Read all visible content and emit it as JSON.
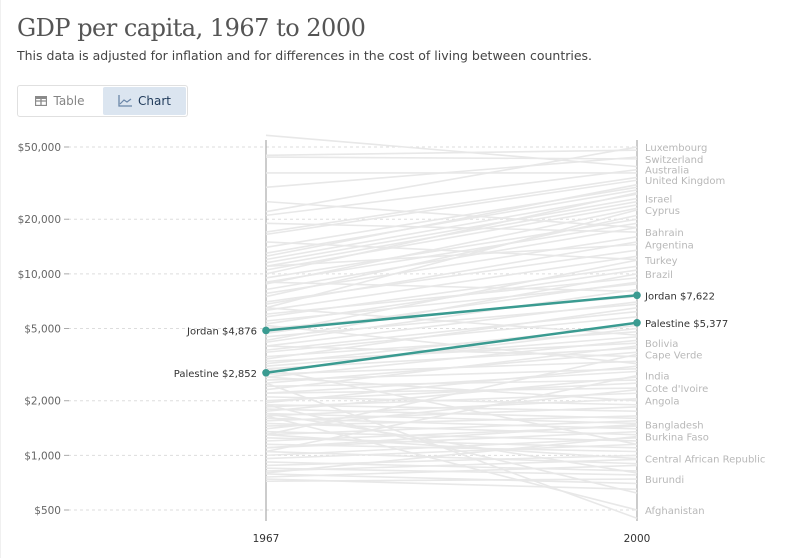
{
  "header": {
    "title": "GDP per capita, 1967 to 2000",
    "subtitle": "This data is adjusted for inflation and for differences in the cost of living between countries."
  },
  "tabs": [
    {
      "label": "Table",
      "icon": "table-icon",
      "active": false
    },
    {
      "label": "Chart",
      "icon": "line-chart-icon",
      "active": true
    }
  ],
  "colors": {
    "highlight": "#3a9b91",
    "background_line": "#e8e8e8",
    "grid": "#dddddd",
    "axis": "#999999"
  },
  "chart_data": {
    "type": "line",
    "subtype": "slope",
    "title": "GDP per capita, 1967 to 2000",
    "x": [
      "1967",
      "2000"
    ],
    "y_scale": "log",
    "ylim": [
      450,
      60000
    ],
    "y_ticks": [
      {
        "value": 50000,
        "label": "$50,000"
      },
      {
        "value": 20000,
        "label": "$20,000"
      },
      {
        "value": 10000,
        "label": "$10,000"
      },
      {
        "value": 5000,
        "label": "$5,000"
      },
      {
        "value": 2000,
        "label": "$2,000"
      },
      {
        "value": 1000,
        "label": "$1,000"
      },
      {
        "value": 500,
        "label": "$500"
      }
    ],
    "grid": "horizontal-dashed",
    "highlighted_series": [
      {
        "name": "Jordan",
        "values": [
          4876,
          7622
        ],
        "start_label": "Jordan $4,876",
        "end_label": "Jordan $7,622"
      },
      {
        "name": "Palestine",
        "values": [
          2852,
          5377
        ],
        "start_label": "Palestine $2,852",
        "end_label": "Palestine $5,377"
      }
    ],
    "labeled_background_series": [
      {
        "name": "Luxembourg",
        "values": [
          22000,
          50000
        ]
      },
      {
        "name": "Switzerland",
        "values": [
          44000,
          43000
        ]
      },
      {
        "name": "Australia",
        "values": [
          21000,
          37500
        ]
      },
      {
        "name": "United Kingdom",
        "values": [
          16500,
          32800
        ]
      },
      {
        "name": "Israel",
        "values": [
          11500,
          26000
        ]
      },
      {
        "name": "Cyprus",
        "values": [
          6500,
          22500
        ]
      },
      {
        "name": "Bahrain",
        "values": [
          19000,
          17000
        ]
      },
      {
        "name": "Argentina",
        "values": [
          11000,
          14500
        ]
      },
      {
        "name": "Turkey",
        "values": [
          4700,
          11900
        ]
      },
      {
        "name": "Brazil",
        "values": [
          4300,
          10000
        ]
      },
      {
        "name": "Bolivia",
        "values": [
          3300,
          4150
        ]
      },
      {
        "name": "Cape Verde",
        "values": [
          1300,
          3600
        ]
      },
      {
        "name": "India",
        "values": [
          1050,
          2750
        ]
      },
      {
        "name": "Cote d'Ivoire",
        "values": [
          2200,
          2350
        ]
      },
      {
        "name": "Angola",
        "values": [
          2700,
          2000
        ]
      },
      {
        "name": "Bangladesh",
        "values": [
          1100,
          1480
        ]
      },
      {
        "name": "Burkina Faso",
        "values": [
          800,
          1270
        ]
      },
      {
        "name": "Central African Republic",
        "values": [
          1300,
          960
        ]
      },
      {
        "name": "Burundi",
        "values": [
          720,
          740
        ]
      },
      {
        "name": "Afghanistan",
        "values": [
          1650,
          500
        ]
      }
    ],
    "unlabeled_background_series": [
      [
        36000,
        36000
      ],
      [
        58000,
        39000
      ],
      [
        45000,
        48000
      ],
      [
        30000,
        44000
      ],
      [
        17000,
        34000
      ],
      [
        14000,
        30000
      ],
      [
        13000,
        29000
      ],
      [
        12500,
        31000
      ],
      [
        12000,
        27500
      ],
      [
        11000,
        25000
      ],
      [
        10500,
        24000
      ],
      [
        10000,
        28000
      ],
      [
        9500,
        20000
      ],
      [
        9000,
        19000
      ],
      [
        8800,
        23000
      ],
      [
        8200,
        18000
      ],
      [
        7800,
        16000
      ],
      [
        7500,
        21000
      ],
      [
        7000,
        13500
      ],
      [
        6800,
        15000
      ],
      [
        6300,
        12500
      ],
      [
        6000,
        9500
      ],
      [
        5800,
        11000
      ],
      [
        5500,
        8800
      ],
      [
        5300,
        10500
      ],
      [
        5000,
        7500
      ],
      [
        4700,
        9000
      ],
      [
        4500,
        6800
      ],
      [
        4200,
        8200
      ],
      [
        4000,
        7000
      ],
      [
        3800,
        6200
      ],
      [
        3700,
        5800
      ],
      [
        3500,
        4800
      ],
      [
        3400,
        6500
      ],
      [
        3200,
        5200
      ],
      [
        3100,
        4500
      ],
      [
        3000,
        3900
      ],
      [
        2900,
        5000
      ],
      [
        2800,
        3300
      ],
      [
        2700,
        4300
      ],
      [
        2600,
        3000
      ],
      [
        2500,
        3700
      ],
      [
        2400,
        2600
      ],
      [
        2300,
        4000
      ],
      [
        2200,
        2900
      ],
      [
        2100,
        1900
      ],
      [
        2000,
        2500
      ],
      [
        1950,
        3100
      ],
      [
        1900,
        1750
      ],
      [
        1850,
        2200
      ],
      [
        1800,
        1600
      ],
      [
        1750,
        2700
      ],
      [
        1700,
        1500
      ],
      [
        1650,
        2050
      ],
      [
        1600,
        1400
      ],
      [
        1550,
        1850
      ],
      [
        1500,
        1300
      ],
      [
        1450,
        1650
      ],
      [
        1400,
        2300
      ],
      [
        1350,
        1200
      ],
      [
        1300,
        1550
      ],
      [
        1250,
        1100
      ],
      [
        1200,
        1450
      ],
      [
        1150,
        1050
      ],
      [
        1100,
        1350
      ],
      [
        1050,
        900
      ],
      [
        1000,
        1250
      ],
      [
        960,
        1150
      ],
      [
        920,
        820
      ],
      [
        880,
        1000
      ],
      [
        850,
        780
      ],
      [
        820,
        950
      ],
      [
        790,
        700
      ],
      [
        760,
        880
      ],
      [
        740,
        650
      ],
      [
        2500,
        450
      ],
      [
        1900,
        620
      ],
      [
        3000,
        1150
      ],
      [
        1700,
        800
      ],
      [
        5200,
        3200
      ],
      [
        6500,
        4600
      ],
      [
        4000,
        3500
      ],
      [
        9000,
        8000
      ],
      [
        15000,
        12000
      ],
      [
        25000,
        18000
      ]
    ],
    "layout_hint": {
      "xlabel": "",
      "ylabel": ""
    }
  }
}
